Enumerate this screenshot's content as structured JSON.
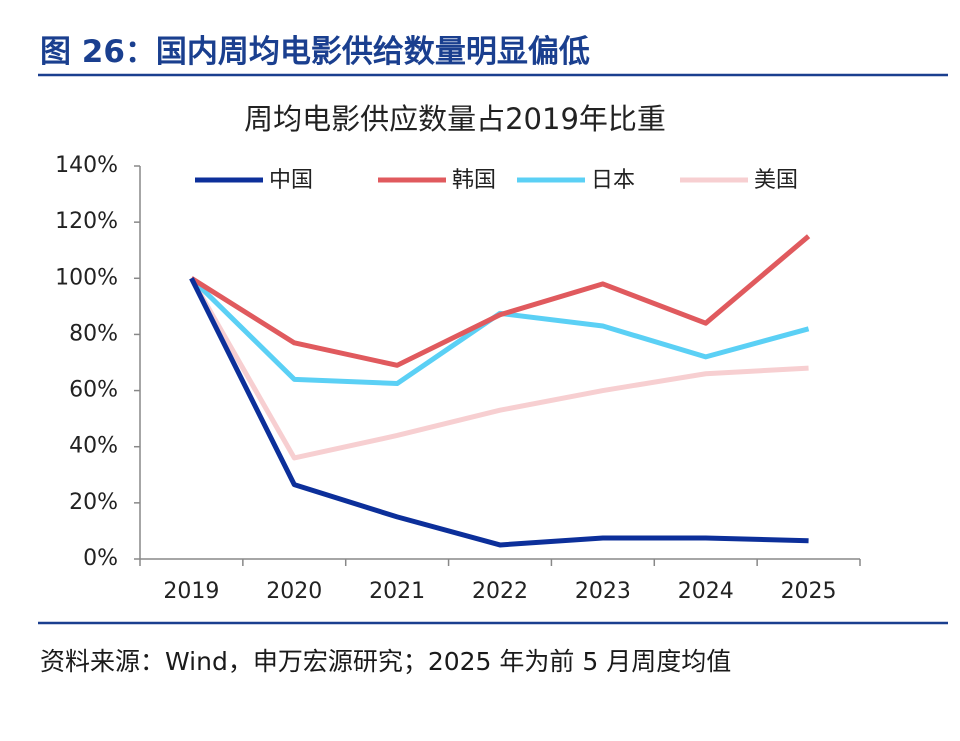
{
  "header": {
    "title": "图 26：国内周均电影供给数量明显偏低"
  },
  "chart_data": {
    "type": "line",
    "title": "周均电影供应数量占2019年比重",
    "categories": [
      "2019",
      "2020",
      "2021",
      "2022",
      "2023",
      "2024",
      "2025"
    ],
    "series": [
      {
        "name": "中国",
        "color": "#0c2f9a",
        "values": [
          100,
          26.5,
          15,
          5,
          7.5,
          7.5,
          6.5
        ]
      },
      {
        "name": "韩国",
        "color": "#e05a5e",
        "values": [
          100,
          77,
          69,
          87,
          98,
          84,
          115
        ]
      },
      {
        "name": "日本",
        "color": "#5bd0f5",
        "values": [
          100,
          64,
          62.5,
          87.5,
          83,
          72,
          82
        ]
      },
      {
        "name": "美国",
        "color": "#f7cfd1",
        "values": [
          100,
          36,
          44,
          53,
          60,
          66,
          68
        ]
      }
    ],
    "ylim": [
      0,
      140
    ],
    "yticks": [
      {
        "value": 0,
        "label": "0%"
      },
      {
        "value": 20,
        "label": "20%"
      },
      {
        "value": 40,
        "label": "40%"
      },
      {
        "value": 60,
        "label": "60%"
      },
      {
        "value": 80,
        "label": "80%"
      },
      {
        "value": 100,
        "label": "100%"
      },
      {
        "value": 120,
        "label": "120%"
      },
      {
        "value": 140,
        "label": "140%"
      }
    ],
    "grid": false,
    "legend": "top"
  },
  "footer": {
    "source": "资料来源：Wind，申万宏源研究；2025 年为前 5 月周度均值"
  }
}
